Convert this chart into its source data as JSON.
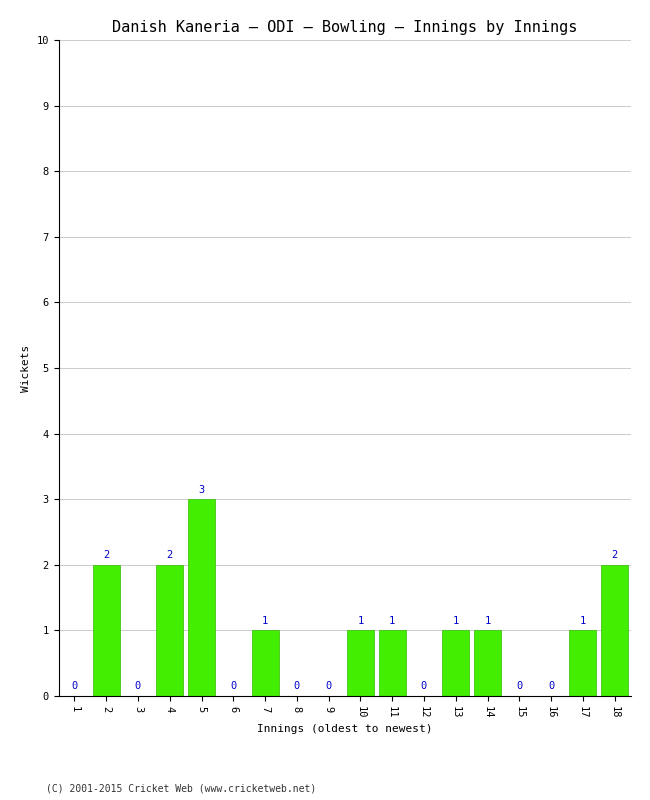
{
  "title": "Danish Kaneria – ODI – Bowling – Innings by Innings",
  "xlabel": "Innings (oldest to newest)",
  "ylabel": "Wickets",
  "categories": [
    "1",
    "2",
    "3",
    "4",
    "5",
    "6",
    "7",
    "8",
    "9",
    "10",
    "11",
    "12",
    "13",
    "14",
    "15",
    "16",
    "17",
    "18"
  ],
  "values": [
    0,
    2,
    0,
    2,
    3,
    0,
    1,
    0,
    0,
    1,
    1,
    0,
    1,
    1,
    0,
    0,
    1,
    2
  ],
  "bar_color": "#44ee00",
  "bar_edge_color": "#33bb00",
  "label_color": "#0000cc",
  "background_color": "#ffffff",
  "grid_color": "#cccccc",
  "ylim": [
    0,
    10
  ],
  "yticks": [
    0,
    1,
    2,
    3,
    4,
    5,
    6,
    7,
    8,
    9,
    10
  ],
  "title_fontsize": 11,
  "axis_label_fontsize": 8,
  "tick_label_fontsize": 7.5,
  "value_label_fontsize": 7.5,
  "footer": "(C) 2001-2015 Cricket Web (www.cricketweb.net)",
  "footer_fontsize": 7
}
